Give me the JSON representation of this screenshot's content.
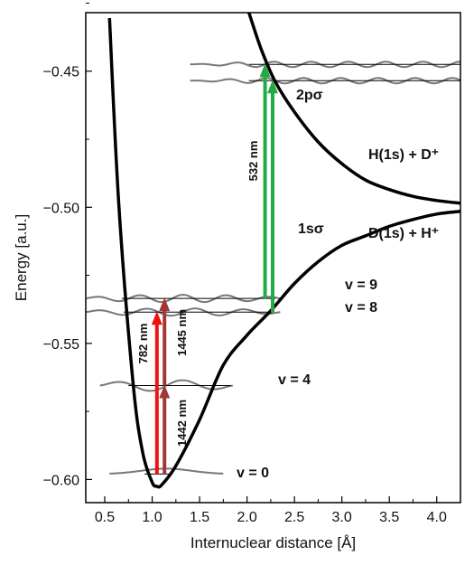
{
  "chart_data": {
    "type": "line",
    "xlabel": "Internuclear distance [Å]",
    "ylabel": "Energy [a.u.]",
    "xlim": [
      0.3,
      4.25
    ],
    "ylim": [
      -0.6085,
      -0.4285
    ],
    "x_ticks": [
      "0.5",
      "1.0",
      "1.5",
      "2.0",
      "2.5",
      "3.0",
      "3.5",
      "4.0"
    ],
    "y_ticks": [
      "-0.45",
      "-0.50",
      "-0.55",
      "-0.60"
    ],
    "x_tick_values": [
      0.5,
      1.0,
      1.5,
      2.0,
      2.5,
      3.0,
      3.5,
      4.0
    ],
    "y_tick_values": [
      -0.45,
      -0.5,
      -0.55,
      -0.6
    ],
    "series": [
      {
        "name": "1sσ",
        "color": "#000000",
        "x": [
          0.55,
          0.65,
          0.8,
          0.9,
          1.0,
          1.05,
          1.1,
          1.25,
          1.5,
          1.75,
          2.0,
          2.25,
          2.5,
          2.75,
          3.0,
          3.25,
          3.5,
          3.75,
          4.0,
          4.25
        ],
        "y": [
          -0.4305,
          -0.5,
          -0.565,
          -0.59,
          -0.601,
          -0.6025,
          -0.602,
          -0.595,
          -0.578,
          -0.558,
          -0.547,
          -0.538,
          -0.528,
          -0.52,
          -0.514,
          -0.5105,
          -0.507,
          -0.5045,
          -0.5025,
          -0.5015
        ]
      },
      {
        "name": "2pσ",
        "color": "#000000",
        "x": [
          2.02,
          2.15,
          2.3,
          2.5,
          2.75,
          3.0,
          3.25,
          3.5,
          3.75,
          4.0,
          4.25
        ],
        "y": [
          -0.4285,
          -0.442,
          -0.454,
          -0.465,
          -0.476,
          -0.484,
          -0.49,
          -0.4935,
          -0.496,
          -0.4975,
          -0.4985
        ]
      }
    ],
    "curve_labels": {
      "upper": "2pσ",
      "lower": "1sσ"
    },
    "asymptotes": {
      "upper": "H(1s) + D⁺",
      "lower": "D(1s) + H⁺"
    },
    "vibrational_levels": [
      {
        "label": "v = 9",
        "energy": -0.5335
      },
      {
        "label": "v = 8",
        "energy": -0.5385
      },
      {
        "label": "v = 4",
        "energy": -0.5655
      },
      {
        "label": "v = 0",
        "energy": -0.598
      }
    ],
    "upper_levels": [
      {
        "energy": -0.4475
      },
      {
        "energy": -0.4535
      }
    ],
    "transitions": [
      {
        "label": "782 nm",
        "color": "#ee1111",
        "x": 1.05,
        "from": -0.598,
        "to": -0.5385
      },
      {
        "label": "1442 nm",
        "color": "#a03838",
        "x": 1.13,
        "from": -0.598,
        "to": -0.5655
      },
      {
        "label": "1445 nm",
        "color": "#a03838",
        "x": 1.13,
        "from": -0.5655,
        "to": -0.5335
      },
      {
        "label": "532 nm",
        "color": "#22aa44",
        "x": 2.19,
        "from": -0.5335,
        "to": -0.4475
      },
      {
        "label": "532 nm",
        "color": "#22aa44",
        "x": 2.27,
        "from": -0.5385,
        "to": -0.4535
      }
    ]
  }
}
